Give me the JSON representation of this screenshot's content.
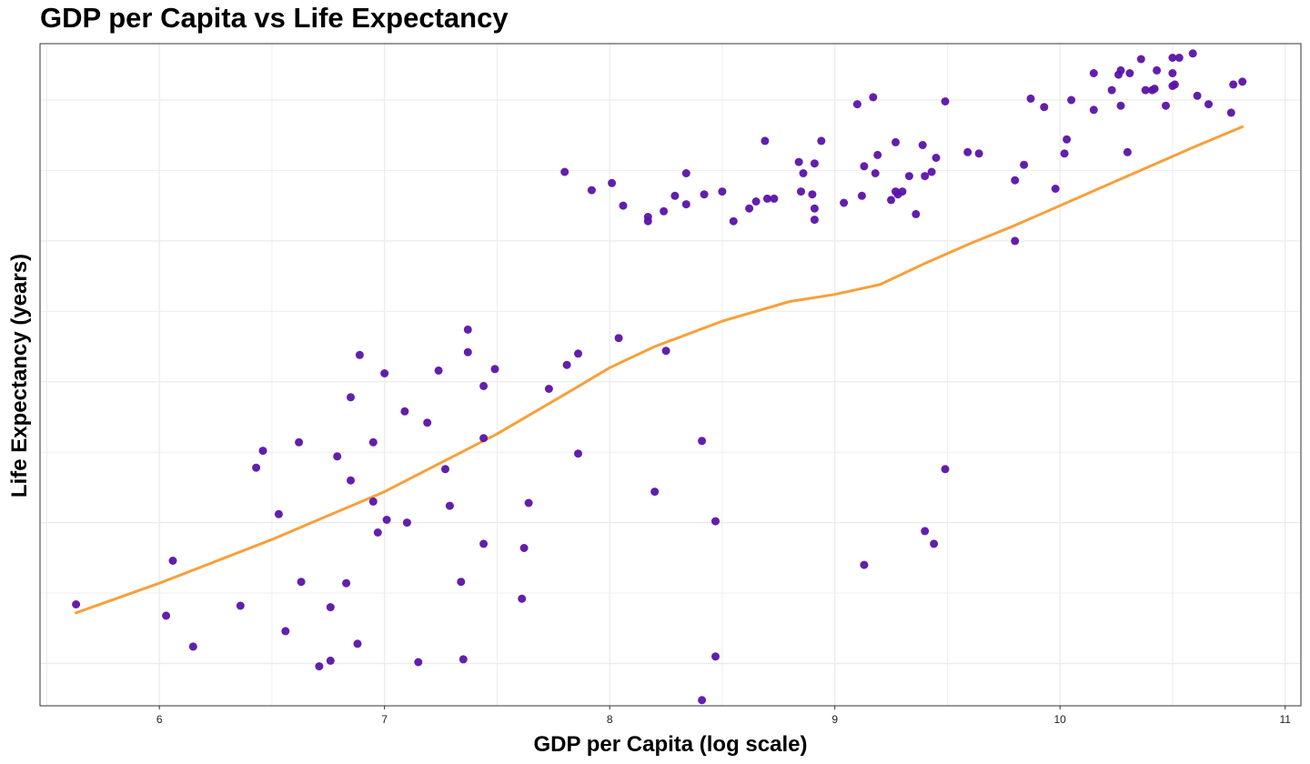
{
  "chart_data": {
    "type": "scatter",
    "title": "GDP per Capita vs Life Expectancy",
    "xlabel": "GDP per Capita (log scale)",
    "ylabel": "Life Expectancy (years)",
    "xlim": [
      5.47,
      11.07
    ],
    "ylim": [
      39.5,
      86.5
    ],
    "x_ticks": [
      6,
      7,
      8,
      9,
      10,
      11
    ],
    "y_gridlines": [
      42.5,
      47.5,
      52.5,
      57.5,
      62.5,
      67.5,
      72.5,
      77.5,
      82.5
    ],
    "y_tick_labels_shown": false,
    "grid": true,
    "legend": "none",
    "colors": {
      "points": "#5b13a8",
      "smooth": "#f7a03b",
      "grid": "#ebebeb",
      "panel_border": "#333333"
    },
    "series": [
      {
        "type": "scatter",
        "points": [
          [
            5.63,
            46.7
          ],
          [
            6.03,
            45.9
          ],
          [
            6.06,
            49.8
          ],
          [
            6.15,
            43.7
          ],
          [
            6.36,
            46.6
          ],
          [
            6.43,
            56.4
          ],
          [
            6.46,
            57.6
          ],
          [
            6.53,
            53.1
          ],
          [
            6.56,
            44.8
          ],
          [
            6.62,
            58.2
          ],
          [
            6.63,
            48.3
          ],
          [
            6.71,
            42.3
          ],
          [
            6.76,
            42.7
          ],
          [
            6.76,
            46.5
          ],
          [
            6.79,
            57.2
          ],
          [
            6.83,
            48.2
          ],
          [
            6.85,
            55.5
          ],
          [
            6.85,
            61.4
          ],
          [
            6.88,
            43.9
          ],
          [
            6.89,
            64.4
          ],
          [
            6.95,
            54.0
          ],
          [
            6.95,
            58.2
          ],
          [
            6.97,
            51.8
          ],
          [
            7.01,
            52.7
          ],
          [
            7.0,
            63.1
          ],
          [
            7.09,
            60.4
          ],
          [
            7.1,
            52.5
          ],
          [
            7.15,
            42.6
          ],
          [
            7.19,
            59.6
          ],
          [
            7.24,
            63.3
          ],
          [
            7.27,
            56.3
          ],
          [
            7.29,
            53.7
          ],
          [
            7.34,
            48.3
          ],
          [
            7.35,
            42.8
          ],
          [
            7.37,
            66.2
          ],
          [
            7.37,
            64.6
          ],
          [
            7.44,
            51.0
          ],
          [
            7.44,
            58.5
          ],
          [
            7.44,
            62.2
          ],
          [
            7.49,
            63.4
          ],
          [
            7.61,
            47.1
          ],
          [
            7.62,
            50.7
          ],
          [
            7.64,
            53.9
          ],
          [
            7.73,
            62.0
          ],
          [
            7.8,
            77.4
          ],
          [
            7.81,
            63.7
          ],
          [
            7.86,
            64.5
          ],
          [
            7.86,
            57.4
          ],
          [
            7.92,
            76.1
          ],
          [
            8.01,
            76.6
          ],
          [
            8.04,
            65.6
          ],
          [
            8.06,
            75.0
          ],
          [
            8.17,
            74.2
          ],
          [
            8.17,
            73.9
          ],
          [
            8.2,
            54.7
          ],
          [
            8.24,
            74.6
          ],
          [
            8.25,
            64.7
          ],
          [
            8.29,
            75.7
          ],
          [
            8.34,
            75.1
          ],
          [
            8.34,
            77.3
          ],
          [
            8.41,
            58.3
          ],
          [
            8.41,
            39.9
          ],
          [
            8.42,
            75.8
          ],
          [
            8.47,
            52.6
          ],
          [
            8.47,
            43.0
          ],
          [
            8.5,
            76.0
          ],
          [
            8.55,
            73.9
          ],
          [
            8.62,
            74.8
          ],
          [
            8.65,
            75.3
          ],
          [
            8.69,
            79.6
          ],
          [
            8.7,
            75.5
          ],
          [
            8.73,
            75.5
          ],
          [
            8.84,
            78.1
          ],
          [
            8.85,
            76.0
          ],
          [
            8.86,
            77.3
          ],
          [
            8.9,
            75.8
          ],
          [
            8.91,
            78.0
          ],
          [
            8.91,
            74.8
          ],
          [
            8.91,
            74.0
          ],
          [
            8.94,
            79.6
          ],
          [
            9.04,
            75.2
          ],
          [
            9.1,
            82.2
          ],
          [
            9.12,
            75.7
          ],
          [
            9.13,
            77.8
          ],
          [
            9.13,
            49.5
          ],
          [
            9.17,
            82.7
          ],
          [
            9.18,
            77.3
          ],
          [
            9.19,
            78.6
          ],
          [
            9.25,
            75.4
          ],
          [
            9.27,
            76.0
          ],
          [
            9.27,
            79.5
          ],
          [
            9.28,
            75.8
          ],
          [
            9.3,
            76.0
          ],
          [
            9.33,
            77.1
          ],
          [
            9.36,
            74.4
          ],
          [
            9.39,
            79.3
          ],
          [
            9.4,
            51.9
          ],
          [
            9.4,
            77.1
          ],
          [
            9.43,
            77.4
          ],
          [
            9.44,
            51.0
          ],
          [
            9.45,
            78.4
          ],
          [
            9.49,
            82.4
          ],
          [
            9.49,
            56.3
          ],
          [
            9.59,
            78.8
          ],
          [
            9.64,
            78.7
          ],
          [
            9.8,
            76.8
          ],
          [
            9.8,
            72.5
          ],
          [
            9.84,
            77.9
          ],
          [
            9.87,
            82.6
          ],
          [
            9.93,
            82.0
          ],
          [
            9.98,
            76.2
          ],
          [
            10.02,
            78.7
          ],
          [
            10.03,
            79.7
          ],
          [
            10.05,
            82.5
          ],
          [
            10.15,
            81.8
          ],
          [
            10.15,
            84.4
          ],
          [
            10.23,
            83.2
          ],
          [
            10.26,
            84.3
          ],
          [
            10.27,
            82.1
          ],
          [
            10.27,
            84.6
          ],
          [
            10.3,
            78.8
          ],
          [
            10.31,
            84.4
          ],
          [
            10.36,
            85.4
          ],
          [
            10.38,
            83.2
          ],
          [
            10.41,
            83.2
          ],
          [
            10.42,
            83.3
          ],
          [
            10.43,
            84.6
          ],
          [
            10.47,
            82.1
          ],
          [
            10.5,
            83.5
          ],
          [
            10.5,
            84.4
          ],
          [
            10.5,
            85.5
          ],
          [
            10.51,
            83.6
          ],
          [
            10.53,
            85.5
          ],
          [
            10.59,
            85.8
          ],
          [
            10.61,
            82.8
          ],
          [
            10.66,
            82.2
          ],
          [
            10.76,
            81.6
          ],
          [
            10.77,
            83.6
          ],
          [
            10.81,
            83.8
          ]
        ]
      },
      {
        "type": "line",
        "points": [
          [
            5.63,
            46.1
          ],
          [
            6.0,
            48.2
          ],
          [
            6.5,
            51.3
          ],
          [
            7.0,
            54.7
          ],
          [
            7.5,
            58.8
          ],
          [
            7.8,
            61.6
          ],
          [
            8.0,
            63.5
          ],
          [
            8.2,
            65.0
          ],
          [
            8.5,
            66.8
          ],
          [
            8.8,
            68.2
          ],
          [
            9.0,
            68.7
          ],
          [
            9.2,
            69.4
          ],
          [
            9.4,
            70.9
          ],
          [
            9.6,
            72.3
          ],
          [
            9.8,
            73.6
          ],
          [
            10.0,
            75.0
          ],
          [
            10.2,
            76.4
          ],
          [
            10.4,
            77.8
          ],
          [
            10.6,
            79.2
          ],
          [
            10.81,
            80.6
          ]
        ]
      }
    ]
  }
}
